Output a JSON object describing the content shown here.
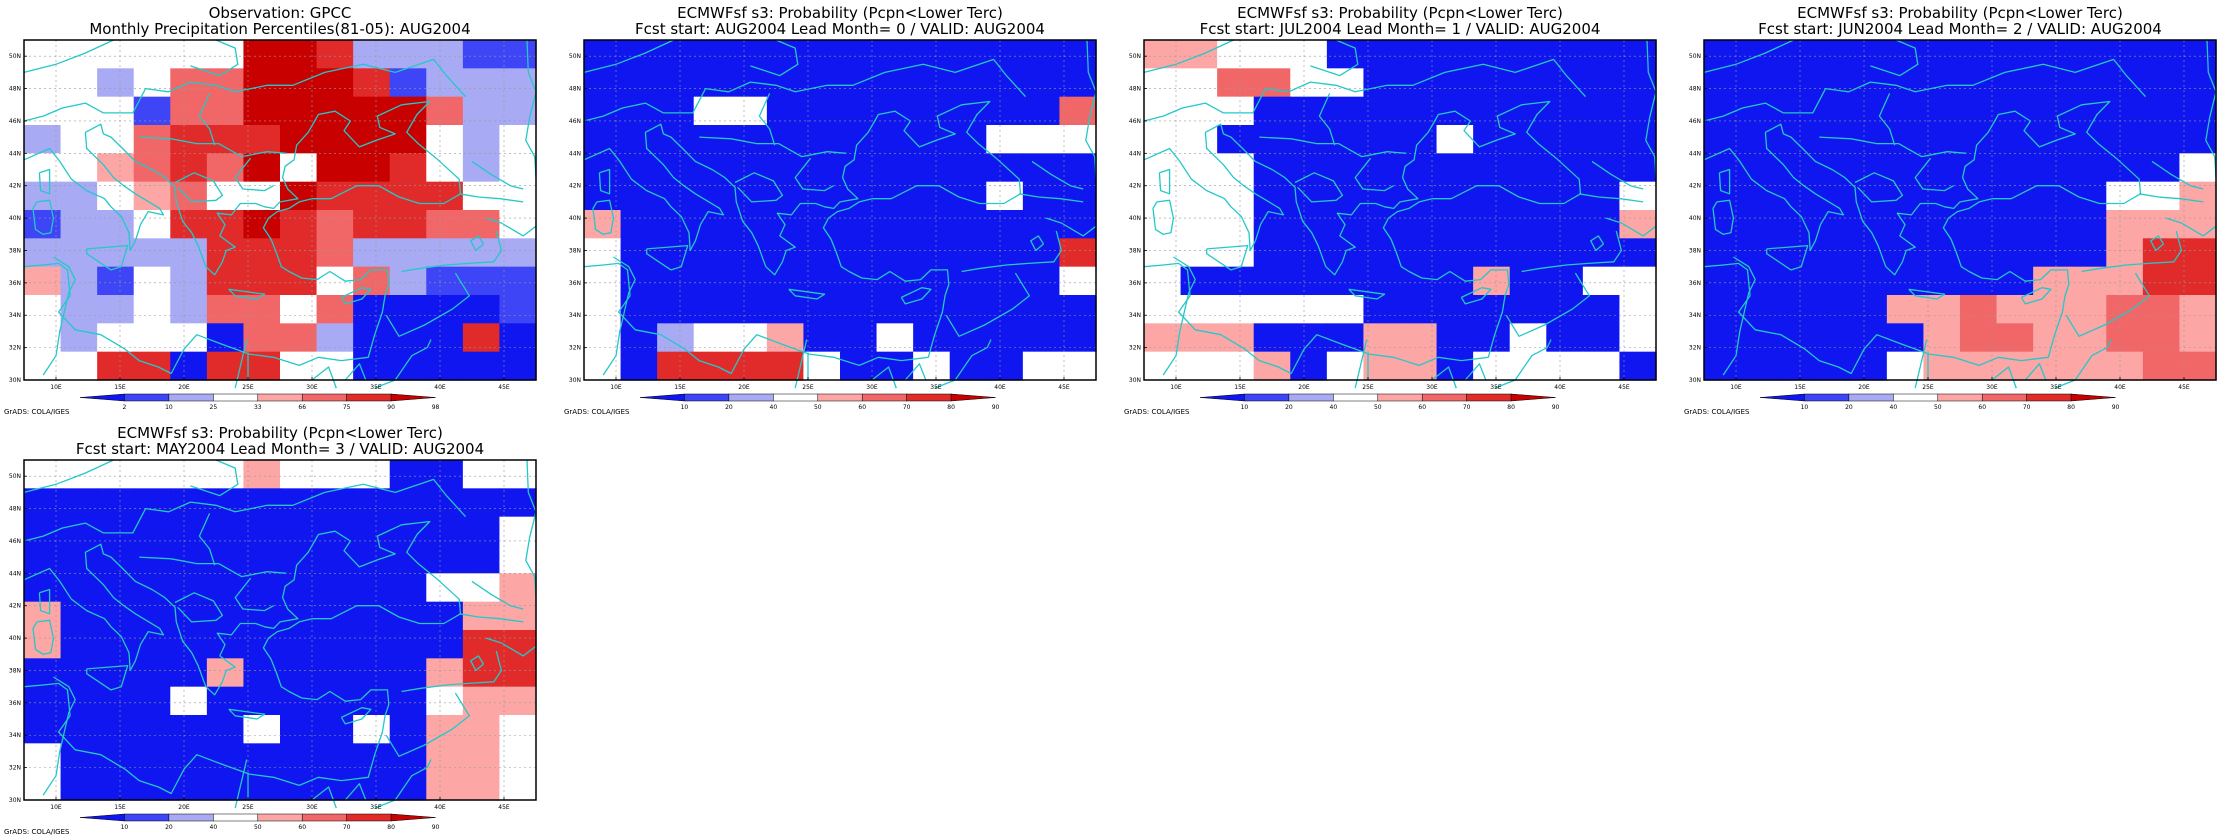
{
  "colors": {
    "frame": "#000000",
    "coast": "#24c8c8",
    "grid": "#999999",
    "palette": [
      "#0f16f0",
      "#3d45f7",
      "#a8aaf4",
      "#ffffff",
      "#fca6a6",
      "#f16767",
      "#e12b2b",
      "#c80000"
    ]
  },
  "obs_scale": {
    "labels": [
      "2",
      "10",
      "25",
      "33",
      "66",
      "75",
      "90",
      "98"
    ]
  },
  "prob_scale": {
    "labels": [
      "10",
      "20",
      "40",
      "50",
      "60",
      "70",
      "80",
      "90"
    ]
  },
  "map_extent": {
    "lon": [
      7.5,
      47.5
    ],
    "lat": [
      30,
      51
    ]
  },
  "panels": [
    {
      "id": "obs",
      "scale": "obs",
      "title1": "Observation: GPCC",
      "title2": "Monthly Precipitation Percentiles(81-05): AUG2004",
      "lat_labels": [
        "50N",
        "48N",
        "46N",
        "44N",
        "42N",
        "40N",
        "38N",
        "36N",
        "34N",
        "32N",
        "30N"
      ],
      "lon_labels": [
        "10E",
        "15E",
        "20E",
        "25E",
        "30E",
        "35E",
        "40E",
        "45E"
      ],
      "credit": "GrADS: COLA/IGES",
      "grid": [
        "ddddddhhgcccbb",
        "ddcdffhhhgbccc",
        "dddbffhhhhhfcc",
        "cddfggghhhhdcd",
        "ddefgfhdhhgdcd",
        "ccdefddhggggdd",
        "bccdgghgfggffd",
        "cccccgggfccccc",
        "ecbdcgggdfcbbb",
        "dccdcffdfaaaab",
        "dcdddaffcaaaga",
        "ddggaggddaaaaa"
      ]
    },
    {
      "id": "lead0",
      "scale": "prob",
      "title1": "ECMWFsf s3: Probability (Pcpn<Lower Terc)",
      "title2": "Fcst start: AUG2004  Lead Month= 0 / VALID: AUG2004",
      "lat_labels": [
        "50N",
        "48N",
        "46N",
        "44N",
        "42N",
        "40N",
        "38N",
        "36N",
        "34N",
        "32N",
        "30N"
      ],
      "lon_labels": [
        "10E",
        "15E",
        "20E",
        "25E",
        "30E",
        "35E",
        "40E",
        "45E"
      ],
      "credit": "GrADS: COLA/IGES",
      "grid": [
        "aaaaaaaaaaaaaa",
        "aaaaaaaaaaaaaa",
        "aaaddaaaaaaaaf",
        "aaaaaaaaaaaddd",
        "aaaaaaaaaaaaaa",
        "aaaaaaaaaaadaa",
        "eaaaaaaaaaaaaa",
        "daaaaaaaaaaaag",
        "daaaaaaaaaaaad",
        "daaaaaaaaaaaaa",
        "dacddeaadaaaaa",
        "daggggdaadaadd"
      ]
    },
    {
      "id": "lead1",
      "scale": "prob",
      "title1": "ECMWFsf s3: Probability (Pcpn<Lower Terc)",
      "title2": "Fcst start: JUL2004  Lead Month= 1 / VALID: AUG2004",
      "lat_labels": [
        "50N",
        "48N",
        "46N",
        "44N",
        "42N",
        "40N",
        "38N",
        "36N",
        "34N",
        "32N",
        "30N"
      ],
      "lon_labels": [
        "10E",
        "15E",
        "20E",
        "25E",
        "30E",
        "35E",
        "40E",
        "45E"
      ],
      "credit": "GrADS: COLA/IGES",
      "grid": [
        "eedddaaaaaaaaa",
        "ddffddaaaaaaaa",
        "dddaaaaaaaaaaa",
        "ddaaaaaadaaaaa",
        "dddaaaaaaaaaaa",
        "dddaaaaaaaaaad",
        "dddaaaaaaaaaae",
        "dddaaaaaaaaaaa",
        "daaaaaaaaeaadd",
        "ddddddaaaaaaad",
        "eeeaaaeeaadaad",
        "dddeadeeadddda"
      ]
    },
    {
      "id": "lead2",
      "scale": "prob",
      "title1": "ECMWFsf s3: Probability (Pcpn<Lower Terc)",
      "title2": "Fcst start: JUN2004  Lead Month= 2 / VALID: AUG2004",
      "lat_labels": [
        "50N",
        "48N",
        "46N",
        "44N",
        "42N",
        "40N",
        "38N",
        "36N",
        "34N",
        "32N",
        "30N"
      ],
      "lon_labels": [
        "10E",
        "15E",
        "20E",
        "25E",
        "30E",
        "35E",
        "40E",
        "45E"
      ],
      "credit": "GrADS: COLA/IGES",
      "grid": [
        "aaaaaaaaaaaaaa",
        "aaaaaaaaaaaaaa",
        "aaaaaaaaaaaaaa",
        "aaaaaaaaaaaaaa",
        "aaaaaaaaaaaaad",
        "aaaaaaaaaaadde",
        "aaaaaaaaaaaeee",
        "aaaaaaaaaaaegg",
        "aaaaaaaaaeeegg",
        "aaaaaeefeeeffe",
        "aaaaaaeffeeffe",
        "aaaaadeeeeeeff"
      ]
    },
    {
      "id": "lead3",
      "scale": "prob",
      "title1": "ECMWFsf s3: Probability (Pcpn<Lower Terc)",
      "title2": "Fcst start: MAY2004  Lead Month= 3 / VALID: AUG2004",
      "lat_labels": [
        "50N",
        "48N",
        "46N",
        "44N",
        "42N",
        "40N",
        "38N",
        "36N",
        "34N",
        "32N",
        "30N"
      ],
      "lon_labels": [
        "10E",
        "15E",
        "20E",
        "25E",
        "30E",
        "35E",
        "40E",
        "45E"
      ],
      "credit": "GrADS: COLA/IGES",
      "grid": [
        "ddddddedddaadd",
        "aaaaaaaaaaaaaa",
        "aaaaaaaaaaaaad",
        "aaaaaaaaaaaaad",
        "aaaaaaaaaaadde",
        "eaaaaaaaaaaaee",
        "eaaaaaaaaaaagg",
        "aaaaaeaaaaaegg",
        "aaaadaaaaaadee",
        "aaaaaadaadaeed",
        "daaaaaaaaaaeed",
        "daaaaaaaaaaeed"
      ]
    }
  ]
}
